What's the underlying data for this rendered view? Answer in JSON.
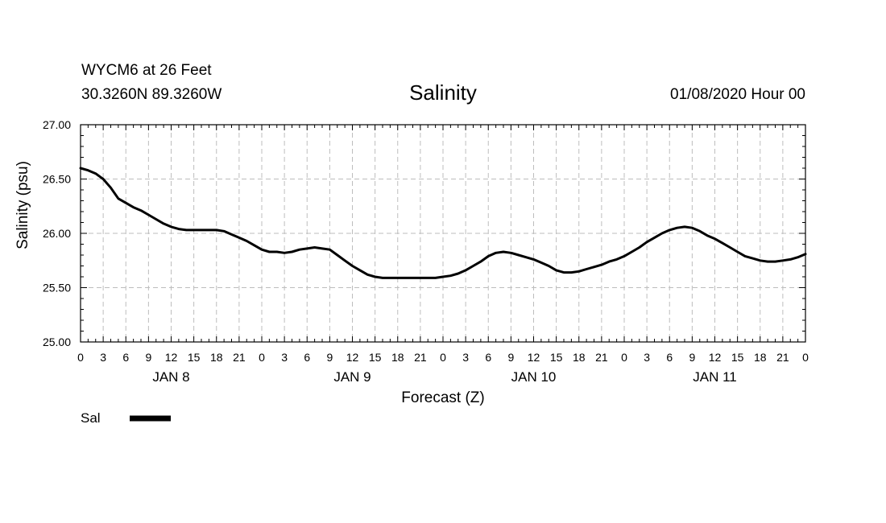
{
  "header": {
    "station": "WYCM6 at 26 Feet",
    "coords": "30.3260N 89.3260W",
    "title": "Salinity",
    "datetime": "01/08/2020 Hour 00"
  },
  "chart_data": {
    "type": "line",
    "title": "Salinity",
    "xlabel": "Forecast (Z)",
    "ylabel": "Salinity (psu)",
    "ylim": [
      25.0,
      27.0
    ],
    "y_ticks": [
      "25.00",
      "25.50",
      "26.00",
      "26.50",
      "27.00"
    ],
    "xlim_hours": [
      0,
      96
    ],
    "x_tick_labels": [
      "0",
      "3",
      "6",
      "9",
      "12",
      "15",
      "18",
      "21",
      "0",
      "3",
      "6",
      "9",
      "12",
      "15",
      "18",
      "21",
      "0",
      "3",
      "6",
      "9",
      "12",
      "15",
      "18",
      "21",
      "0",
      "3",
      "6",
      "9",
      "12",
      "15",
      "18",
      "21",
      "0"
    ],
    "day_labels": [
      {
        "label": "JAN 8",
        "hour": 12
      },
      {
        "label": "JAN 9",
        "hour": 36
      },
      {
        "label": "JAN 10",
        "hour": 60
      },
      {
        "label": "JAN 11",
        "hour": 84
      }
    ],
    "grid": true,
    "legend": {
      "position": "bottom-left",
      "entries": [
        "Sal"
      ]
    },
    "series": [
      {
        "name": "Sal",
        "color": "#000000",
        "x": [
          0,
          1,
          2,
          3,
          4,
          5,
          6,
          7,
          8,
          9,
          10,
          11,
          12,
          13,
          14,
          15,
          16,
          17,
          18,
          19,
          20,
          21,
          22,
          23,
          24,
          25,
          26,
          27,
          28,
          29,
          30,
          31,
          32,
          33,
          34,
          35,
          36,
          37,
          38,
          39,
          40,
          41,
          42,
          43,
          44,
          45,
          46,
          47,
          48,
          49,
          50,
          51,
          52,
          53,
          54,
          55,
          56,
          57,
          58,
          59,
          60,
          61,
          62,
          63,
          64,
          65,
          66,
          67,
          68,
          69,
          70,
          71,
          72,
          73,
          74,
          75,
          76,
          77,
          78,
          79,
          80,
          81,
          82,
          83,
          84,
          85,
          86,
          87,
          88,
          89,
          90,
          91,
          92,
          93,
          94,
          95,
          96
        ],
        "values": [
          26.6,
          26.58,
          26.55,
          26.5,
          26.42,
          26.32,
          26.28,
          26.24,
          26.21,
          26.17,
          26.13,
          26.09,
          26.06,
          26.04,
          26.03,
          26.03,
          26.03,
          26.03,
          26.03,
          26.02,
          25.99,
          25.96,
          25.93,
          25.89,
          25.85,
          25.83,
          25.83,
          25.82,
          25.83,
          25.85,
          25.86,
          25.87,
          25.86,
          25.85,
          25.8,
          25.75,
          25.7,
          25.66,
          25.62,
          25.6,
          25.59,
          25.59,
          25.59,
          25.59,
          25.59,
          25.59,
          25.59,
          25.59,
          25.6,
          25.61,
          25.63,
          25.66,
          25.7,
          25.74,
          25.79,
          25.82,
          25.83,
          25.82,
          25.8,
          25.78,
          25.76,
          25.73,
          25.7,
          25.66,
          25.64,
          25.64,
          25.65,
          25.67,
          25.69,
          25.71,
          25.74,
          25.76,
          25.79,
          25.83,
          25.87,
          25.92,
          25.96,
          26.0,
          26.03,
          26.05,
          26.06,
          26.05,
          26.02,
          25.98,
          25.95,
          25.91,
          25.87,
          25.83,
          25.79,
          25.77,
          25.75,
          25.74,
          25.74,
          25.75,
          25.76,
          25.78,
          25.81
        ]
      }
    ]
  }
}
